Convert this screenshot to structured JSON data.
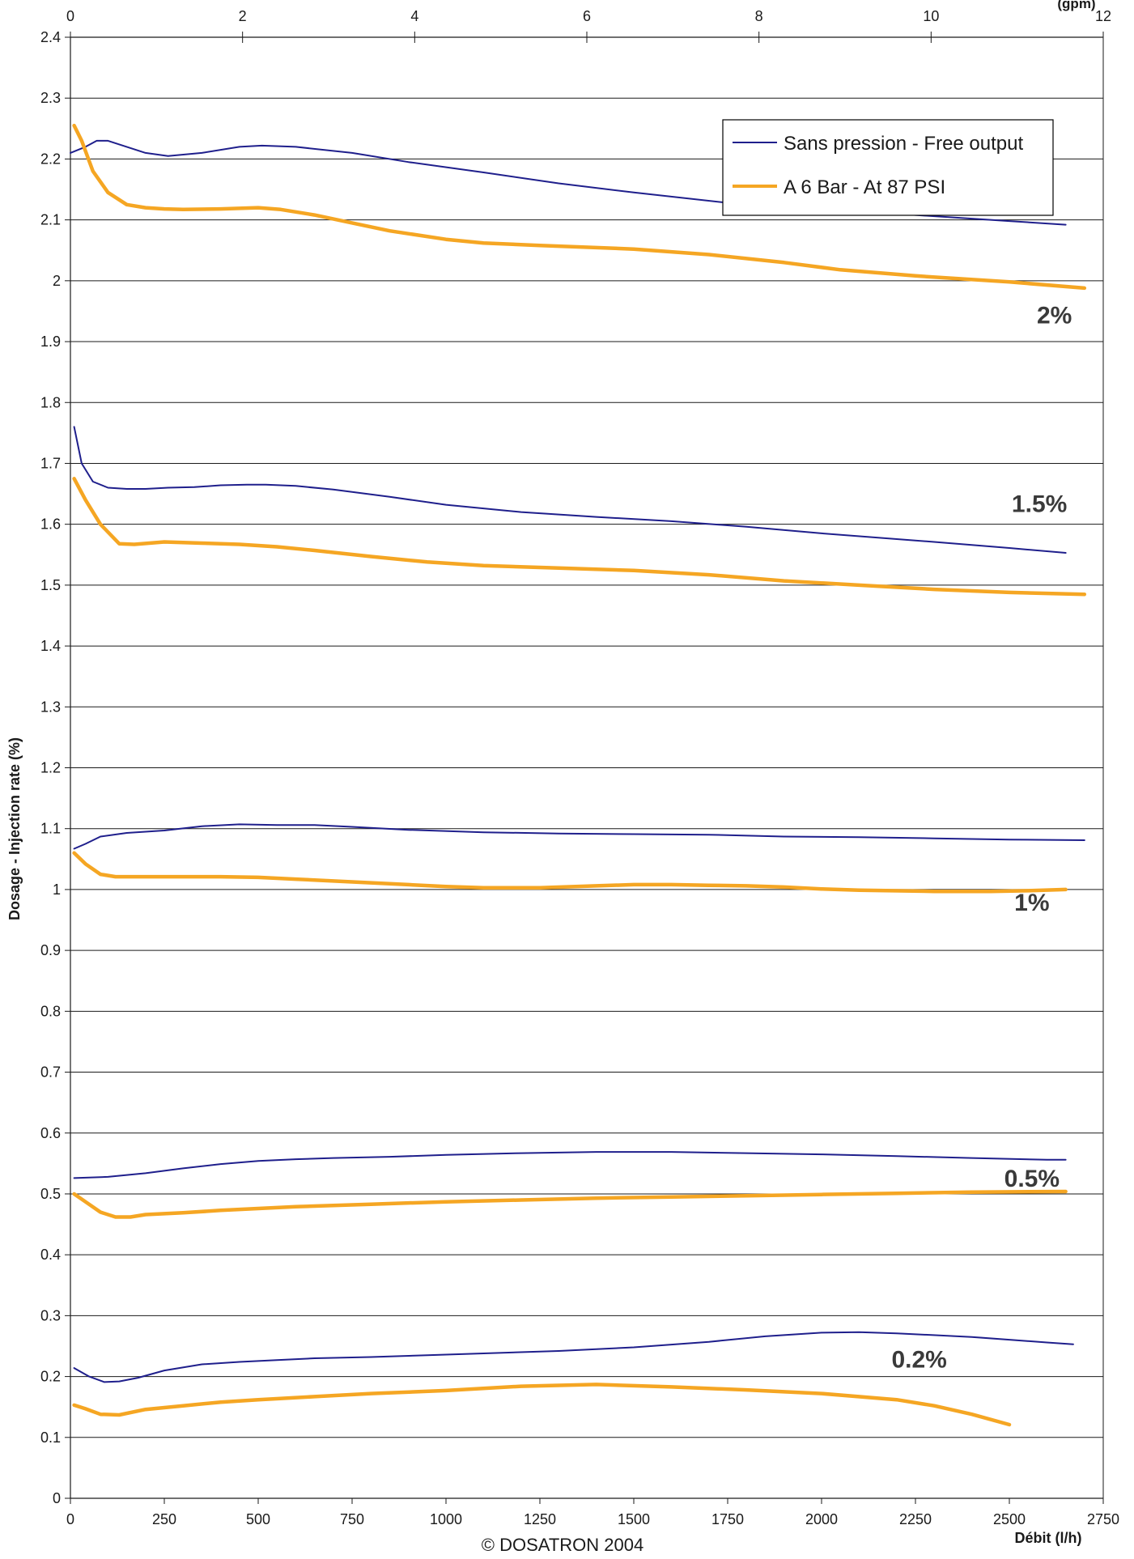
{
  "chart_data": {
    "type": "line",
    "ylabel": "Dosage - Injection rate (%)",
    "xlabel": "Débit (l/h)",
    "footer": "© DOSATRON 2004",
    "top_axis_label": "(gpm)",
    "xlim": [
      0,
      2750
    ],
    "ylim": [
      0,
      2.4
    ],
    "top_xlim": [
      0,
      12
    ],
    "x_ticks": [
      0,
      250,
      500,
      750,
      1000,
      1250,
      1500,
      1750,
      2000,
      2250,
      2500,
      2750
    ],
    "y_ticks": [
      0,
      0.1,
      0.2,
      0.3,
      0.4,
      0.5,
      0.6,
      0.7,
      0.8,
      0.9,
      1,
      1.1,
      1.2,
      1.3,
      1.4,
      1.5,
      1.6,
      1.7,
      1.8,
      1.9,
      2,
      2.1,
      2.2,
      2.3,
      2.4
    ],
    "top_ticks": [
      0,
      2,
      4,
      6,
      8,
      10,
      12
    ],
    "grid": "horizontal",
    "legend_position": "top-right",
    "legend": [
      {
        "name": "Sans pression - Free output",
        "color": "#1f1f8c"
      },
      {
        "name": "A 6 Bar - At 87 PSI",
        "color": "#f5a623"
      }
    ],
    "series": [
      {
        "legend": "Sans pression - Free output",
        "color": "#1f1f8c",
        "points": [
          [
            0,
            2.21
          ],
          [
            40,
            2.22
          ],
          [
            70,
            2.23
          ],
          [
            100,
            2.23
          ],
          [
            150,
            2.22
          ],
          [
            200,
            2.21
          ],
          [
            260,
            2.205
          ],
          [
            350,
            2.21
          ],
          [
            450,
            2.22
          ],
          [
            510,
            2.222
          ],
          [
            600,
            2.22
          ],
          [
            750,
            2.21
          ],
          [
            900,
            2.195
          ],
          [
            1100,
            2.178
          ],
          [
            1300,
            2.16
          ],
          [
            1500,
            2.145
          ],
          [
            1750,
            2.128
          ],
          [
            2000,
            2.12
          ],
          [
            2250,
            2.108
          ],
          [
            2500,
            2.098
          ],
          [
            2650,
            2.092
          ]
        ]
      },
      {
        "legend": "A 6 Bar - At 87 PSI",
        "color": "#f5a623",
        "points": [
          [
            10,
            2.255
          ],
          [
            30,
            2.23
          ],
          [
            60,
            2.18
          ],
          [
            100,
            2.145
          ],
          [
            150,
            2.125
          ],
          [
            200,
            2.12
          ],
          [
            250,
            2.118
          ],
          [
            300,
            2.117
          ],
          [
            400,
            2.118
          ],
          [
            500,
            2.12
          ],
          [
            560,
            2.117
          ],
          [
            650,
            2.108
          ],
          [
            750,
            2.095
          ],
          [
            850,
            2.082
          ],
          [
            1000,
            2.068
          ],
          [
            1100,
            2.062
          ],
          [
            1250,
            2.058
          ],
          [
            1500,
            2.052
          ],
          [
            1700,
            2.043
          ],
          [
            1900,
            2.03
          ],
          [
            2050,
            2.018
          ],
          [
            2250,
            2.008
          ],
          [
            2500,
            1.998
          ],
          [
            2700,
            1.988
          ]
        ]
      },
      {
        "label": "",
        "color": "#1f1f8c",
        "points": [
          [
            10,
            1.76
          ],
          [
            30,
            1.7
          ],
          [
            60,
            1.67
          ],
          [
            100,
            1.66
          ],
          [
            150,
            1.658
          ],
          [
            200,
            1.658
          ],
          [
            260,
            1.66
          ],
          [
            330,
            1.661
          ],
          [
            400,
            1.664
          ],
          [
            470,
            1.665
          ],
          [
            520,
            1.665
          ],
          [
            600,
            1.663
          ],
          [
            700,
            1.657
          ],
          [
            850,
            1.645
          ],
          [
            1000,
            1.632
          ],
          [
            1200,
            1.62
          ],
          [
            1400,
            1.612
          ],
          [
            1600,
            1.605
          ],
          [
            1800,
            1.596
          ],
          [
            2000,
            1.585
          ],
          [
            2300,
            1.571
          ],
          [
            2500,
            1.561
          ],
          [
            2650,
            1.553
          ]
        ]
      },
      {
        "label": "",
        "color": "#f5a623",
        "points": [
          [
            10,
            1.675
          ],
          [
            40,
            1.64
          ],
          [
            80,
            1.6
          ],
          [
            130,
            1.568
          ],
          [
            170,
            1.567
          ],
          [
            250,
            1.571
          ],
          [
            350,
            1.569
          ],
          [
            450,
            1.567
          ],
          [
            550,
            1.563
          ],
          [
            650,
            1.557
          ],
          [
            800,
            1.547
          ],
          [
            950,
            1.538
          ],
          [
            1100,
            1.532
          ],
          [
            1300,
            1.528
          ],
          [
            1500,
            1.524
          ],
          [
            1700,
            1.517
          ],
          [
            1900,
            1.507
          ],
          [
            2100,
            1.5
          ],
          [
            2300,
            1.493
          ],
          [
            2500,
            1.488
          ],
          [
            2700,
            1.485
          ]
        ]
      },
      {
        "label": "",
        "color": "#1f1f8c",
        "points": [
          [
            10,
            1.067
          ],
          [
            40,
            1.075
          ],
          [
            80,
            1.087
          ],
          [
            150,
            1.093
          ],
          [
            250,
            1.097
          ],
          [
            350,
            1.104
          ],
          [
            450,
            1.107
          ],
          [
            550,
            1.106
          ],
          [
            650,
            1.106
          ],
          [
            750,
            1.103
          ],
          [
            900,
            1.098
          ],
          [
            1100,
            1.094
          ],
          [
            1300,
            1.092
          ],
          [
            1500,
            1.091
          ],
          [
            1700,
            1.09
          ],
          [
            1900,
            1.087
          ],
          [
            2100,
            1.086
          ],
          [
            2300,
            1.084
          ],
          [
            2500,
            1.082
          ],
          [
            2700,
            1.081
          ]
        ]
      },
      {
        "label": "",
        "color": "#f5a623",
        "points": [
          [
            10,
            1.06
          ],
          [
            40,
            1.042
          ],
          [
            80,
            1.025
          ],
          [
            120,
            1.021
          ],
          [
            200,
            1.021
          ],
          [
            300,
            1.021
          ],
          [
            400,
            1.021
          ],
          [
            500,
            1.02
          ],
          [
            600,
            1.017
          ],
          [
            700,
            1.014
          ],
          [
            800,
            1.011
          ],
          [
            900,
            1.008
          ],
          [
            1000,
            1.005
          ],
          [
            1100,
            1.003
          ],
          [
            1250,
            1.003
          ],
          [
            1400,
            1.006
          ],
          [
            1500,
            1.008
          ],
          [
            1600,
            1.008
          ],
          [
            1700,
            1.007
          ],
          [
            1800,
            1.006
          ],
          [
            1900,
            1.004
          ],
          [
            2000,
            1.001
          ],
          [
            2100,
            0.999
          ],
          [
            2300,
            0.997
          ],
          [
            2450,
            0.997
          ],
          [
            2550,
            0.998
          ],
          [
            2650,
            1.0
          ]
        ]
      },
      {
        "label": "",
        "color": "#1f1f8c",
        "points": [
          [
            10,
            0.526
          ],
          [
            100,
            0.528
          ],
          [
            200,
            0.534
          ],
          [
            300,
            0.542
          ],
          [
            400,
            0.549
          ],
          [
            500,
            0.554
          ],
          [
            600,
            0.557
          ],
          [
            700,
            0.559
          ],
          [
            850,
            0.561
          ],
          [
            1000,
            0.564
          ],
          [
            1200,
            0.567
          ],
          [
            1400,
            0.569
          ],
          [
            1600,
            0.569
          ],
          [
            1800,
            0.567
          ],
          [
            2000,
            0.565
          ],
          [
            2200,
            0.562
          ],
          [
            2400,
            0.559
          ],
          [
            2600,
            0.556
          ],
          [
            2650,
            0.556
          ]
        ]
      },
      {
        "label": "",
        "color": "#f5a623",
        "points": [
          [
            10,
            0.5
          ],
          [
            40,
            0.487
          ],
          [
            80,
            0.47
          ],
          [
            120,
            0.462
          ],
          [
            160,
            0.462
          ],
          [
            200,
            0.466
          ],
          [
            300,
            0.469
          ],
          [
            400,
            0.473
          ],
          [
            500,
            0.476
          ],
          [
            600,
            0.479
          ],
          [
            800,
            0.483
          ],
          [
            1000,
            0.487
          ],
          [
            1200,
            0.49
          ],
          [
            1400,
            0.493
          ],
          [
            1600,
            0.495
          ],
          [
            1800,
            0.497
          ],
          [
            2000,
            0.499
          ],
          [
            2200,
            0.501
          ],
          [
            2400,
            0.503
          ],
          [
            2650,
            0.504
          ]
        ]
      },
      {
        "label": "",
        "color": "#1f1f8c",
        "points": [
          [
            10,
            0.214
          ],
          [
            50,
            0.2
          ],
          [
            90,
            0.191
          ],
          [
            130,
            0.192
          ],
          [
            180,
            0.198
          ],
          [
            250,
            0.21
          ],
          [
            350,
            0.22
          ],
          [
            450,
            0.224
          ],
          [
            550,
            0.227
          ],
          [
            650,
            0.23
          ],
          [
            800,
            0.232
          ],
          [
            950,
            0.235
          ],
          [
            1100,
            0.238
          ],
          [
            1300,
            0.242
          ],
          [
            1500,
            0.248
          ],
          [
            1700,
            0.257
          ],
          [
            1850,
            0.266
          ],
          [
            2000,
            0.272
          ],
          [
            2100,
            0.273
          ],
          [
            2200,
            0.271
          ],
          [
            2400,
            0.265
          ],
          [
            2600,
            0.256
          ],
          [
            2670,
            0.253
          ]
        ]
      },
      {
        "label": "",
        "color": "#f5a623",
        "points": [
          [
            10,
            0.153
          ],
          [
            40,
            0.147
          ],
          [
            80,
            0.138
          ],
          [
            130,
            0.137
          ],
          [
            200,
            0.146
          ],
          [
            300,
            0.152
          ],
          [
            400,
            0.158
          ],
          [
            500,
            0.162
          ],
          [
            650,
            0.167
          ],
          [
            800,
            0.172
          ],
          [
            1000,
            0.177
          ],
          [
            1200,
            0.184
          ],
          [
            1400,
            0.187
          ],
          [
            1600,
            0.183
          ],
          [
            1800,
            0.178
          ],
          [
            2000,
            0.172
          ],
          [
            2200,
            0.162
          ],
          [
            2300,
            0.152
          ],
          [
            2400,
            0.138
          ],
          [
            2500,
            0.121
          ]
        ]
      }
    ],
    "annotations": [
      {
        "text": "2%",
        "x": 2620,
        "y": 1.93
      },
      {
        "text": "1.5%",
        "x": 2580,
        "y": 1.62
      },
      {
        "text": "1%",
        "x": 2560,
        "y": 0.965
      },
      {
        "text": "0.5%",
        "x": 2560,
        "y": 0.512
      },
      {
        "text": "0.2%",
        "x": 2260,
        "y": 0.215
      }
    ]
  }
}
